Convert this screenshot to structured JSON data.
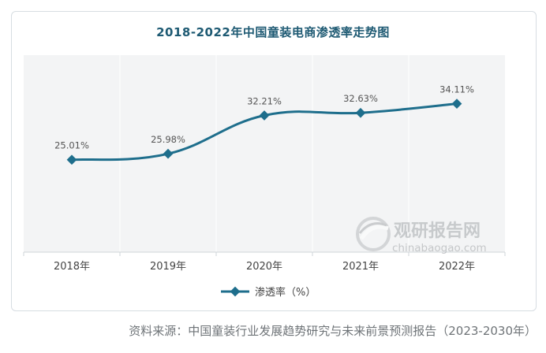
{
  "chart_data": {
    "type": "line",
    "title": "2018-2022年中国童装电商渗透率走势图",
    "categories": [
      "2018年",
      "2019年",
      "2020年",
      "2021年",
      "2022年"
    ],
    "series": [
      {
        "name": "渗透率（%）",
        "values": [
          25.01,
          25.98,
          32.21,
          32.63,
          34.11
        ],
        "value_labels": [
          "25.01%",
          "25.98%",
          "32.21%",
          "32.63%",
          "34.11%"
        ],
        "color": "#1e6e8c"
      }
    ],
    "xlabel": "",
    "ylabel": "",
    "ylim": [
      10,
      42
    ],
    "grid": "vertical",
    "legend_position": "bottom",
    "plot_background": "#f3f4f5"
  },
  "watermark": {
    "brand": "观研报告网",
    "url": "chinabaogao.com"
  },
  "source": "资料来源：中国童装行业发展趋势研究与未来前景预测报告（2023-2030年）"
}
